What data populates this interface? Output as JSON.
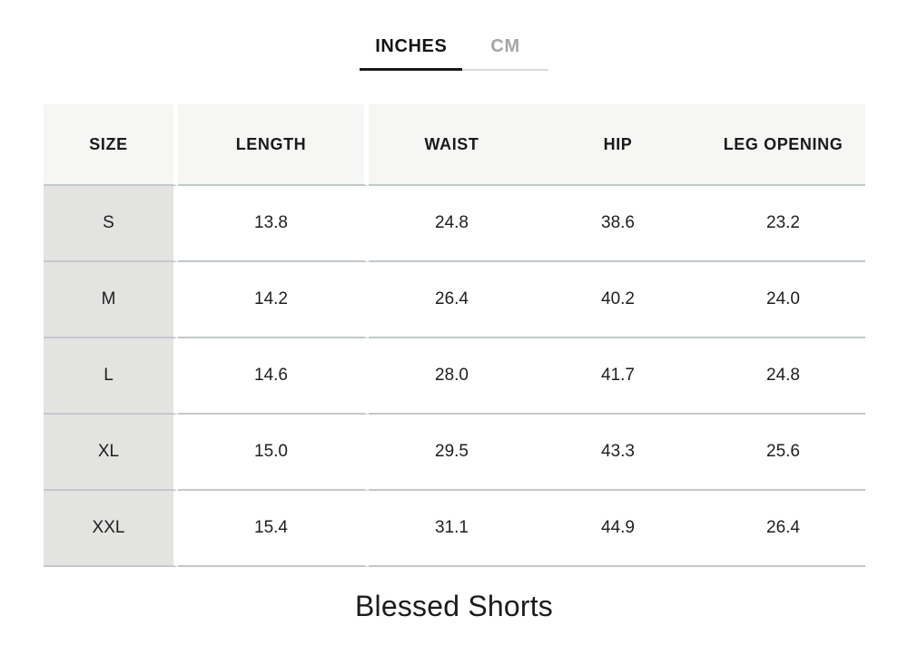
{
  "unit_tabs": {
    "inches_label": "INCHES",
    "cm_label": "CM",
    "active": "INCHES"
  },
  "size_chart": {
    "columns": [
      "SIZE",
      "LENGTH",
      "WAIST",
      "HIP",
      "LEG OPENING"
    ],
    "rows": [
      {
        "size": "S",
        "values": [
          "13.8",
          "24.8",
          "38.6",
          "23.2"
        ]
      },
      {
        "size": "M",
        "values": [
          "14.2",
          "26.4",
          "40.2",
          "24.0"
        ]
      },
      {
        "size": "L",
        "values": [
          "14.6",
          "28.0",
          "41.7",
          "24.8"
        ]
      },
      {
        "size": "XL",
        "values": [
          "15.0",
          "29.5",
          "43.3",
          "25.6"
        ]
      },
      {
        "size": "XXL",
        "values": [
          "15.4",
          "31.1",
          "44.9",
          "26.4"
        ]
      }
    ]
  },
  "product": {
    "title": "Blessed Shorts"
  },
  "colors": {
    "header_bg": "#f6f6f5",
    "size_column_bg": "#e3e3e2",
    "row_separator": "#c2c8cb",
    "active_tab_underline": "#1a1a1a",
    "inactive_tab_underline": "#dbdbdb",
    "inactive_tab_text": "#a6a6a6",
    "text": "#1b1b1b"
  }
}
